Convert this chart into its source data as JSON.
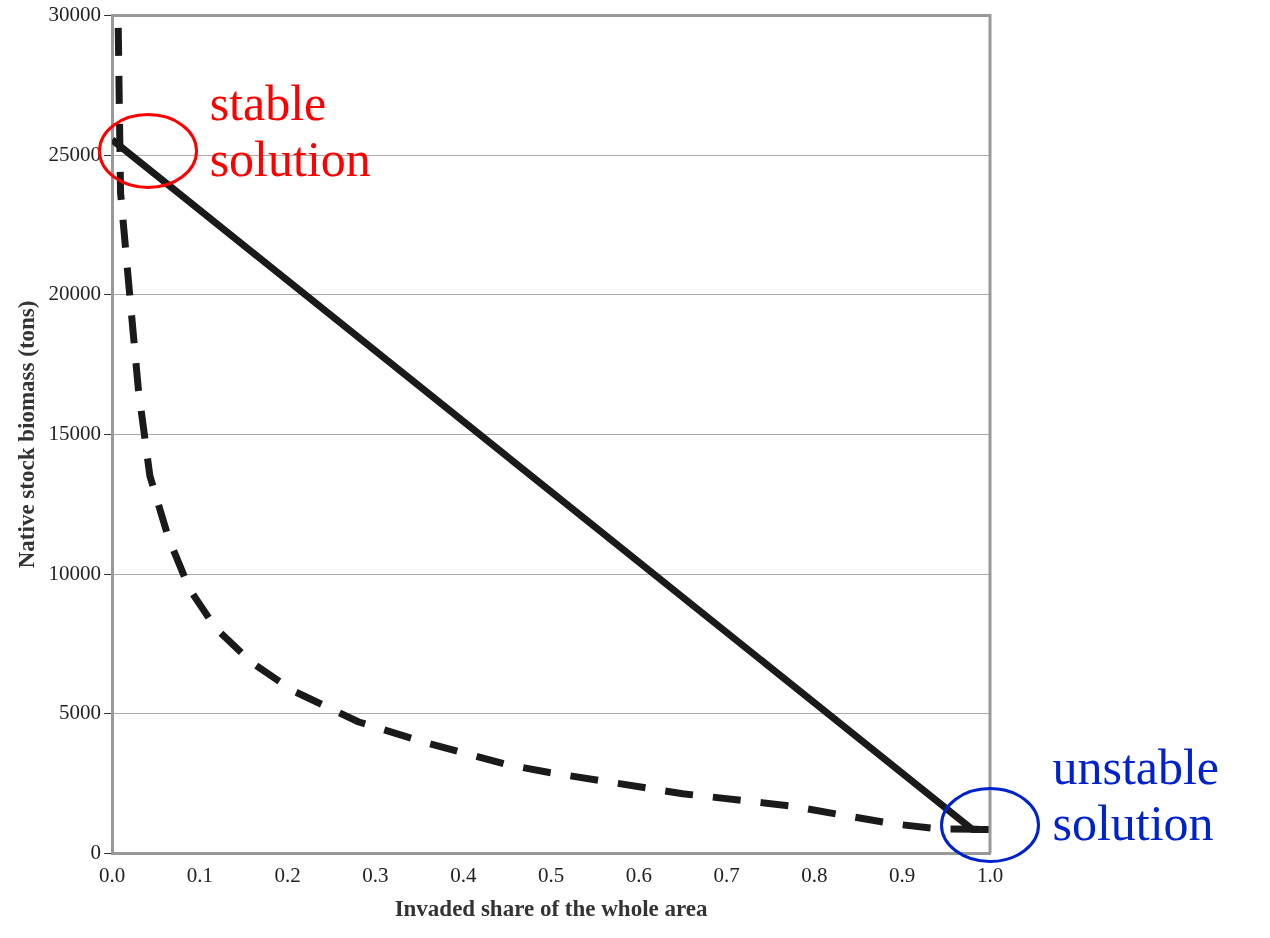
{
  "chart_data": {
    "type": "line",
    "xlabel": "Invaded share of the whole area",
    "ylabel": "Native stock biomass (tons)",
    "xlim": [
      0,
      1
    ],
    "xticks": [
      {
        "value": 0,
        "label": "0.0"
      },
      0.1,
      0.2,
      0.3,
      0.4,
      0.5,
      0.6,
      0.7,
      0.8,
      0.9,
      {
        "value": 1,
        "label": "1.0"
      }
    ],
    "ylim": [
      0,
      30000
    ],
    "yticks": [
      0,
      5000,
      10000,
      15000,
      20000,
      25000,
      30000
    ],
    "grid": "y",
    "legend": false,
    "marker": "none",
    "series": [
      {
        "color": "#1a1a1a",
        "line_style": "solid",
        "x": [
          0,
          0.98,
          1
        ],
        "values": [
          25550,
          850,
          850
        ]
      },
      {
        "color": "#1a1a1a",
        "line_style": "dashed",
        "x": [
          0.007,
          0.0096,
          0.02,
          0.03,
          0.043,
          0.064,
          0.088,
          0.118,
          0.159,
          0.206,
          0.281,
          0.355,
          0.449,
          0.498,
          0.65,
          0.771,
          0.89,
          0.943,
          1
        ],
        "values": [
          29560,
          23670,
          20020,
          16590,
          13520,
          11310,
          9470,
          8060,
          6830,
          5820,
          4700,
          3980,
          3180,
          2890,
          2130,
          1700,
          1050,
          870,
          850
        ]
      }
    ],
    "annotations": [
      {
        "text": "stable solution",
        "x": 0.02,
        "y": 25000
      },
      {
        "text": "unstable solution",
        "x": 0.98,
        "y": 850
      }
    ]
  }
}
